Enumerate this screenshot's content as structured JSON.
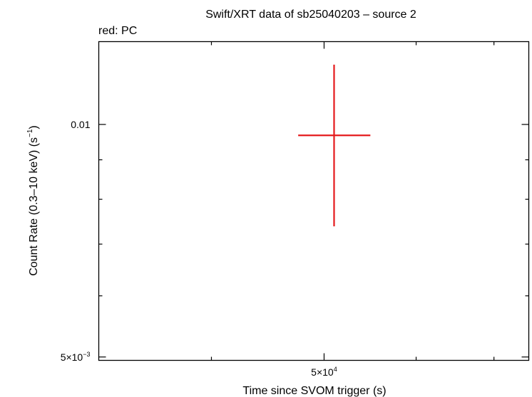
{
  "chart_data": {
    "type": "scatter",
    "title": "Swift/XRT data of sb25040203 – source 2",
    "subtitle": "red: PC",
    "xlabel": "Time since SVOM trigger (s)",
    "ylabel_main": "Count Rate (0.3–10 keV) (s",
    "ylabel_sup": "−1",
    "ylabel_close": ")",
    "x_scale": "log",
    "y_scale": "log",
    "xlim": [
      32000,
      75000
    ],
    "ylim": [
      0.00495,
      0.0128
    ],
    "xticks": [
      {
        "value": 50000,
        "mant": "5×10",
        "exp": "4"
      }
    ],
    "xminor": [
      40000,
      60000,
      70000
    ],
    "yticks": [
      {
        "value": 0.01,
        "text": "0.01"
      },
      {
        "value": 0.005,
        "mant": "5×10",
        "exp": "−3"
      }
    ],
    "yminor": [
      0.006,
      0.007,
      0.008,
      0.009
    ],
    "series": [
      {
        "color": "#e41a1c",
        "points": [
          {
            "x": 51000,
            "x_lo": 47500,
            "x_hi": 54800,
            "y": 0.00968,
            "y_lo": 0.00738,
            "y_hi": 0.01195
          }
        ]
      }
    ]
  }
}
